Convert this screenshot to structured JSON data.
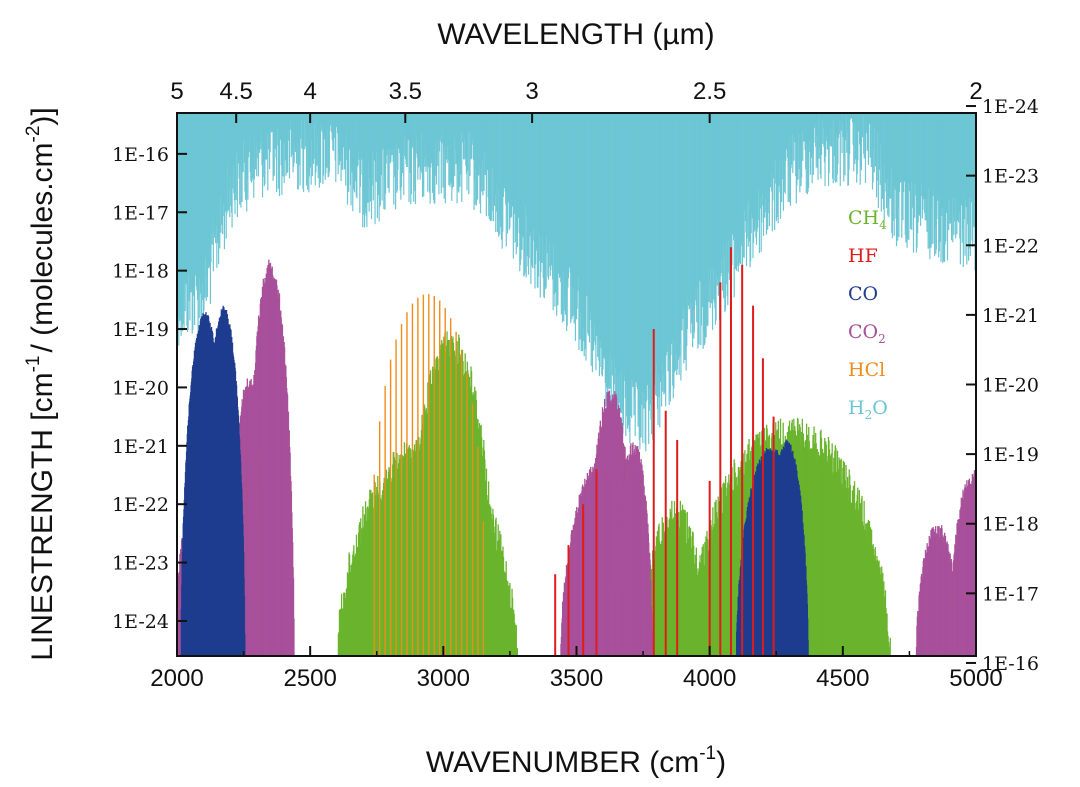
{
  "chart_data": {
    "type": "line",
    "title": "",
    "xlabel": "WAVENUMBER (cm",
    "xlabel_sup": "-1",
    "xlabel_end": ")",
    "x2label": "WAVELENGTH (µm)",
    "ylabel": "LINESTRENGTH [cm",
    "ylabel_sup1": "-1",
    "ylabel_mid": "/ (molecules.cm",
    "ylabel_sup2": "-2",
    "ylabel_end": ")]",
    "xlim": [
      2000,
      5000
    ],
    "ylim_log10": [
      -24.6,
      -15.3
    ],
    "y2lim_log10": [
      -16.1,
      -23.9
    ],
    "x_ticks": [
      "2000",
      "2500",
      "3000",
      "3500",
      "4000",
      "4500",
      "5000"
    ],
    "x2_ticks": [
      "5",
      "4.5",
      "4",
      "3.5",
      "3",
      "2.5",
      "2"
    ],
    "y_ticks": [
      "1E-16",
      "1E-17",
      "1E-18",
      "1E-19",
      "1E-20",
      "1E-21",
      "1E-22",
      "1E-23",
      "1E-24"
    ],
    "y2_ticks": [
      "1E-24",
      "1E-23",
      "1E-22",
      "1E-21",
      "1E-20",
      "1E-19",
      "1E-18",
      "1E-17",
      "1E-16"
    ],
    "legend_position": "top-right",
    "series": [
      {
        "name": "CH4",
        "label_main": "CH",
        "label_sub": "4",
        "color": "#6ab42d",
        "axis": "left",
        "bands": [
          {
            "center": 2940,
            "halfwidth": 340,
            "peak_log10": -20.8
          },
          {
            "center": 3030,
            "halfwidth": 170,
            "peak_log10": -19.0
          },
          {
            "center": 4300,
            "halfwidth": 380,
            "peak_log10": -20.5
          },
          {
            "center": 3870,
            "halfwidth": 120,
            "peak_log10": -21.9
          }
        ]
      },
      {
        "name": "HF",
        "label_main": "HF",
        "label_sub": "",
        "color": "#e11b1b",
        "axis": "left",
        "lines": [
          {
            "x": 3420,
            "log10": -23.2
          },
          {
            "x": 3470,
            "log10": -22.7
          },
          {
            "x": 3525,
            "log10": -22.0
          },
          {
            "x": 3575,
            "log10": -21.4
          },
          {
            "x": 3790,
            "log10": -19.0
          },
          {
            "x": 3835,
            "log10": -20.4
          },
          {
            "x": 3878,
            "log10": -20.9
          },
          {
            "x": 4000,
            "log10": -21.6
          },
          {
            "x": 4040,
            "log10": -18.2
          },
          {
            "x": 4080,
            "log10": -17.6
          },
          {
            "x": 4122,
            "log10": -17.9
          },
          {
            "x": 4163,
            "log10": -18.6
          },
          {
            "x": 4200,
            "log10": -19.5
          },
          {
            "x": 4240,
            "log10": -20.5
          }
        ]
      },
      {
        "name": "CO",
        "label_main": "CO",
        "label_sub": "",
        "color": "#1f3d8f",
        "axis": "left",
        "bands": [
          {
            "center": 2105,
            "halfwidth": 90,
            "peak_log10": -18.7
          },
          {
            "center": 2175,
            "halfwidth": 80,
            "peak_log10": -18.6
          },
          {
            "center": 4230,
            "halfwidth": 130,
            "peak_log10": -21.0
          },
          {
            "center": 4290,
            "halfwidth": 80,
            "peak_log10": -20.9
          }
        ]
      },
      {
        "name": "CO2",
        "label_main": "CO",
        "label_sub": "2",
        "color": "#a8509a",
        "axis": "left",
        "bands": [
          {
            "center": 2350,
            "halfwidth": 90,
            "peak_log10": -17.8
          },
          {
            "center": 2270,
            "halfwidth": 70,
            "peak_log10": -19.8
          },
          {
            "center": 2060,
            "halfwidth": 70,
            "peak_log10": -22.0
          },
          {
            "center": 3630,
            "halfwidth": 90,
            "peak_log10": -20.0
          },
          {
            "center": 3600,
            "halfwidth": 160,
            "peak_log10": -21.2
          },
          {
            "center": 3715,
            "halfwidth": 70,
            "peak_log10": -20.9
          },
          {
            "center": 4855,
            "halfwidth": 80,
            "peak_log10": -22.3
          },
          {
            "center": 4990,
            "halfwidth": 90,
            "peak_log10": -21.4
          }
        ]
      },
      {
        "name": "HCl",
        "label_main": "HCl",
        "label_sub": "",
        "color": "#f08c1a",
        "axis": "left",
        "lines_peaks": {
          "center": 2940,
          "halfwidth": 220,
          "peak_log10": -18.4,
          "spacing": 20.5
        }
      },
      {
        "name": "H2O",
        "label_main": "H",
        "label_sub": "2",
        "label_end": "O",
        "color": "#6cc6d4",
        "axis": "left",
        "spectrum": [
          {
            "x": 2000,
            "floor_log10": -18.0
          },
          {
            "x": 2100,
            "floor_log10": -17.8
          },
          {
            "x": 2200,
            "floor_log10": -16.0
          },
          {
            "x": 2300,
            "floor_log10": -15.5
          },
          {
            "x": 2600,
            "floor_log10": -15.3
          },
          {
            "x": 2700,
            "floor_log10": -16.0
          },
          {
            "x": 2900,
            "floor_log10": -15.6
          },
          {
            "x": 3100,
            "floor_log10": -15.6
          },
          {
            "x": 3300,
            "floor_log10": -16.8
          },
          {
            "x": 3500,
            "floor_log10": -18.0
          },
          {
            "x": 3650,
            "floor_log10": -19.6
          },
          {
            "x": 3750,
            "floor_log10": -20.0
          },
          {
            "x": 3900,
            "floor_log10": -18.6
          },
          {
            "x": 4050,
            "floor_log10": -17.5
          },
          {
            "x": 4200,
            "floor_log10": -16.4
          },
          {
            "x": 4300,
            "floor_log10": -15.7
          },
          {
            "x": 4400,
            "floor_log10": -15.3
          },
          {
            "x": 4600,
            "floor_log10": -15.3
          },
          {
            "x": 4700,
            "floor_log10": -16.4
          },
          {
            "x": 4900,
            "floor_log10": -16.6
          },
          {
            "x": 5000,
            "floor_log10": -16.7
          }
        ]
      }
    ]
  }
}
